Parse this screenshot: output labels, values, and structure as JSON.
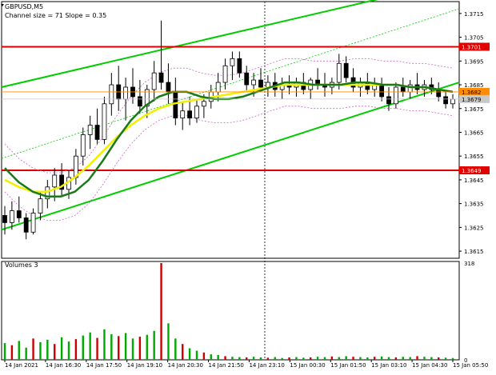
{
  "chart_data": {
    "type": "candlestick",
    "symbol_label": "GBPUSD,M5",
    "indicator_label": "Channel size = 71 Slope = 0.35",
    "volume_label": "Volumes 3",
    "price_axis": {
      "range": [
        1.3612,
        1.372
      ],
      "ticks": [
        "1.3715",
        "1.3705",
        "1.3695",
        "1.3685",
        "1.3675",
        "1.3665",
        "1.3655",
        "1.3645",
        "1.3635",
        "1.3625",
        "1.3615"
      ]
    },
    "volume_axis": {
      "range": [
        0,
        318
      ],
      "ticks": [
        "318",
        "0"
      ]
    },
    "time_labels": [
      "14 Jan 2021",
      "14 Jan 16:30",
      "14 Jan 17:50",
      "14 Jan 19:10",
      "14 Jan 20:30",
      "14 Jan 21:50",
      "14 Jan 23:10",
      "15 Jan 00:30",
      "15 Jan 01:50",
      "15 Jan 03:10",
      "15 Jan 04:30",
      "15 Jan 05:50"
    ],
    "horizontal_levels": [
      {
        "label": "1.3701",
        "value": 1.3701,
        "color": "#e00000"
      },
      {
        "label": "1.3649",
        "value": 1.3649,
        "color": "#e00000"
      }
    ],
    "current_price_markers": [
      {
        "label": "1.3682",
        "value": 1.3682,
        "color": "#ff8c00"
      },
      {
        "label": "1.3679",
        "value": 1.3679,
        "color": "#c8c8c8"
      }
    ],
    "channel_lines": {
      "color": "#00cc00",
      "upper_start": 1.3684,
      "upper_end": 1.3729,
      "lower_start": 1.3624,
      "lower_end": 1.3686,
      "mid_start": 1.3654,
      "mid_end": 1.3717
    },
    "moving_averages": [
      {
        "name": "green",
        "color": "#1a7a1a",
        "values": [
          1.365,
          1.3644,
          1.364,
          1.3638,
          1.3638,
          1.364,
          1.3645,
          1.3653,
          1.3662,
          1.367,
          1.3676,
          1.368,
          1.3682,
          1.3682,
          1.368,
          1.3679,
          1.3679,
          1.368,
          1.3682,
          1.3684,
          1.3686,
          1.3686,
          1.3685,
          1.3685,
          1.3685,
          1.3686,
          1.3686,
          1.3685,
          1.3685,
          1.3684,
          1.3684,
          1.3683,
          1.3682
        ]
      },
      {
        "name": "yellow",
        "color": "#f0f000",
        "values": [
          1.3645,
          1.3642,
          1.364,
          1.364,
          1.3642,
          1.3646,
          1.3651,
          1.3657,
          1.3663,
          1.3668,
          1.3672,
          1.3675,
          1.3677,
          1.3678,
          1.3679,
          1.368,
          1.3681,
          1.3682,
          1.3683,
          1.3684,
          1.3685,
          1.3685,
          1.3685,
          1.3685,
          1.3685,
          1.3685,
          1.3685,
          1.3685,
          1.3685,
          1.3684,
          1.3684,
          1.3683,
          1.3682
        ]
      }
    ],
    "candles": [
      [
        1.363,
        1.3634,
        1.3622,
        1.3627
      ],
      [
        1.3627,
        1.3636,
        1.3624,
        1.3632
      ],
      [
        1.3632,
        1.3638,
        1.3627,
        1.3629
      ],
      [
        1.3629,
        1.3631,
        1.362,
        1.3623
      ],
      [
        1.3623,
        1.3633,
        1.3622,
        1.3631
      ],
      [
        1.3631,
        1.364,
        1.3628,
        1.3637
      ],
      [
        1.3637,
        1.3645,
        1.3633,
        1.3642
      ],
      [
        1.3642,
        1.365,
        1.3636,
        1.3647
      ],
      [
        1.3647,
        1.3652,
        1.3638,
        1.3641
      ],
      [
        1.3641,
        1.3649,
        1.3637,
        1.3646
      ],
      [
        1.3646,
        1.3658,
        1.3643,
        1.3655
      ],
      [
        1.3655,
        1.3667,
        1.3651,
        1.3664
      ],
      [
        1.3664,
        1.3672,
        1.3658,
        1.3668
      ],
      [
        1.3668,
        1.3675,
        1.366,
        1.3662
      ],
      [
        1.3662,
        1.368,
        1.366,
        1.3677
      ],
      [
        1.3677,
        1.369,
        1.3672,
        1.3685
      ],
      [
        1.3685,
        1.3693,
        1.3674,
        1.3679
      ],
      [
        1.3679,
        1.3688,
        1.367,
        1.3684
      ],
      [
        1.3684,
        1.3692,
        1.3677,
        1.368
      ],
      [
        1.368,
        1.3687,
        1.3673,
        1.3676
      ],
      [
        1.3676,
        1.3685,
        1.3671,
        1.3683
      ],
      [
        1.3683,
        1.3695,
        1.3678,
        1.369
      ],
      [
        1.369,
        1.3712,
        1.3683,
        1.3686
      ],
      [
        1.3686,
        1.3694,
        1.3677,
        1.3682
      ],
      [
        1.3682,
        1.3688,
        1.3668,
        1.3671
      ],
      [
        1.3671,
        1.3678,
        1.3666,
        1.3674
      ],
      [
        1.3674,
        1.368,
        1.3668,
        1.3671
      ],
      [
        1.3671,
        1.3679,
        1.3669,
        1.3676
      ],
      [
        1.3676,
        1.3681,
        1.3671,
        1.3678
      ],
      [
        1.3678,
        1.3685,
        1.3675,
        1.3682
      ],
      [
        1.3682,
        1.369,
        1.3678,
        1.3686
      ],
      [
        1.3686,
        1.3696,
        1.3683,
        1.3693
      ],
      [
        1.3693,
        1.3699,
        1.3687,
        1.3696
      ],
      [
        1.3696,
        1.3699,
        1.3688,
        1.369
      ],
      [
        1.369,
        1.3693,
        1.3682,
        1.3685
      ],
      [
        1.3685,
        1.369,
        1.368,
        1.3687
      ],
      [
        1.3687,
        1.3692,
        1.3682,
        1.3684
      ],
      [
        1.3684,
        1.3689,
        1.368,
        1.3686
      ],
      [
        1.3686,
        1.369,
        1.368,
        1.3683
      ],
      [
        1.3683,
        1.3688,
        1.3679,
        1.3685
      ],
      [
        1.3685,
        1.3689,
        1.3681,
        1.3684
      ],
      [
        1.3684,
        1.3688,
        1.368,
        1.3686
      ],
      [
        1.3686,
        1.369,
        1.3681,
        1.3683
      ],
      [
        1.3683,
        1.3688,
        1.3679,
        1.3687
      ],
      [
        1.3687,
        1.3692,
        1.3683,
        1.3685
      ],
      [
        1.3685,
        1.369,
        1.368,
        1.3684
      ],
      [
        1.3684,
        1.3688,
        1.3681,
        1.3686
      ],
      [
        1.3686,
        1.3698,
        1.3683,
        1.3694
      ],
      [
        1.3694,
        1.3697,
        1.3686,
        1.3688
      ],
      [
        1.3688,
        1.3692,
        1.3682,
        1.3684
      ],
      [
        1.3684,
        1.3688,
        1.368,
        1.3686
      ],
      [
        1.3686,
        1.369,
        1.3681,
        1.3683
      ],
      [
        1.3683,
        1.3688,
        1.368,
        1.3685
      ],
      [
        1.3685,
        1.3688,
        1.3678,
        1.368
      ],
      [
        1.368,
        1.3684,
        1.3674,
        1.3677
      ],
      [
        1.3677,
        1.3686,
        1.3675,
        1.3684
      ],
      [
        1.3684,
        1.3688,
        1.368,
        1.3682
      ],
      [
        1.3682,
        1.3687,
        1.3679,
        1.3685
      ],
      [
        1.3685,
        1.369,
        1.3681,
        1.3683
      ],
      [
        1.3683,
        1.3687,
        1.368,
        1.3685
      ],
      [
        1.3685,
        1.3688,
        1.3681,
        1.3683
      ],
      [
        1.3683,
        1.3686,
        1.3678,
        1.368
      ],
      [
        1.368,
        1.3682,
        1.3675,
        1.3677
      ],
      [
        1.3677,
        1.3681,
        1.3675,
        1.3679
      ]
    ],
    "volumes": [
      55,
      48,
      62,
      40,
      70,
      58,
      66,
      52,
      74,
      60,
      68,
      80,
      90,
      72,
      100,
      84,
      78,
      88,
      70,
      76,
      82,
      95,
      318,
      120,
      70,
      52,
      38,
      30,
      24,
      18,
      16,
      12,
      10,
      9,
      8,
      10,
      8,
      7,
      9,
      6,
      8,
      9,
      7,
      8,
      10,
      9,
      11,
      9,
      12,
      10,
      9,
      8,
      10,
      11,
      9,
      8,
      10,
      9,
      12,
      10,
      9,
      8,
      7,
      6
    ]
  }
}
